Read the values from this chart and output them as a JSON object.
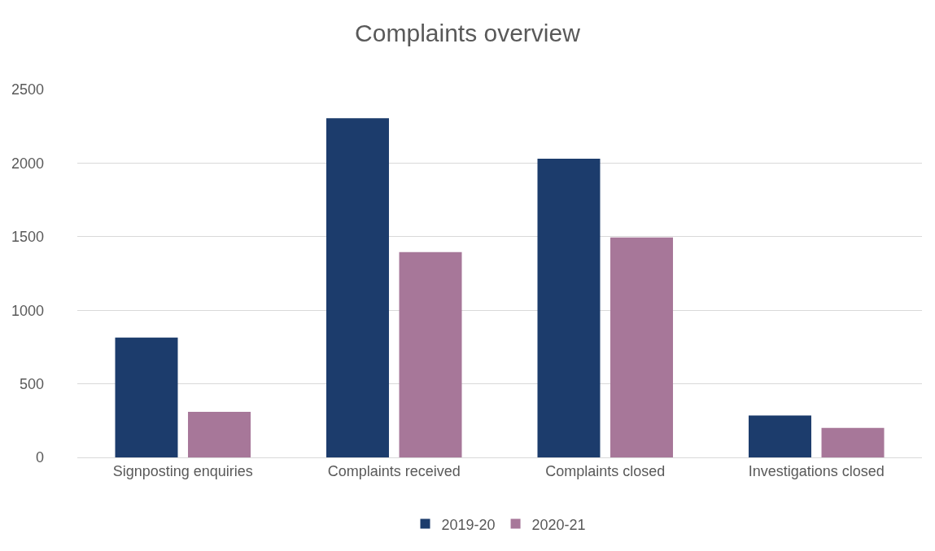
{
  "chart_data": {
    "type": "bar",
    "title": "Complaints overview",
    "categories": [
      "Signposting enquiries",
      "Complaints received",
      "Complaints closed",
      "Investigations closed"
    ],
    "series": [
      {
        "name": "2019-20",
        "color": "#1c3c6c",
        "values": [
          815,
          2305,
          2030,
          285
        ]
      },
      {
        "name": "2020-21",
        "color": "#a77799",
        "values": [
          310,
          1395,
          1495,
          200
        ]
      }
    ],
    "ylim": [
      0,
      2500
    ],
    "yticks": [
      0,
      500,
      1000,
      1500,
      2000,
      2500
    ],
    "grid": "y",
    "legend": "bottom"
  }
}
